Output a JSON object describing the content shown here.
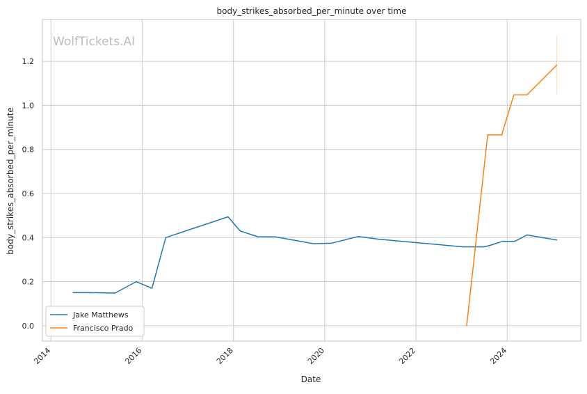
{
  "chart_data": {
    "type": "line",
    "title": "body_strikes_absorbed_per_minute over time",
    "xlabel": "Date",
    "ylabel": "body_strikes_absorbed_per_minute",
    "watermark": "WolfTickets.AI",
    "x_type": "date",
    "xlim": [
      "2013-10-25",
      "2025-08-12"
    ],
    "ylim": [
      -0.07,
      1.39
    ],
    "x_ticks": [
      {
        "date": "2014-01-01",
        "label": "2014"
      },
      {
        "date": "2016-01-01",
        "label": "2016"
      },
      {
        "date": "2018-01-01",
        "label": "2018"
      },
      {
        "date": "2020-01-01",
        "label": "2020"
      },
      {
        "date": "2022-01-01",
        "label": "2022"
      },
      {
        "date": "2024-01-01",
        "label": "2024"
      }
    ],
    "y_ticks": [
      {
        "value": 0.0,
        "label": "0.0"
      },
      {
        "value": 0.2,
        "label": "0.2"
      },
      {
        "value": 0.4,
        "label": "0.4"
      },
      {
        "value": 0.6,
        "label": "0.6"
      },
      {
        "value": 0.8,
        "label": "0.8"
      },
      {
        "value": 1.0,
        "label": "1.0"
      },
      {
        "value": 1.2,
        "label": "1.2"
      }
    ],
    "grid": true,
    "legend_position": "lower-left",
    "series": [
      {
        "name": "Jake Matthews",
        "color": "#1f77b4",
        "points": [
          {
            "x": "2014-06-28",
            "y": 0.15
          },
          {
            "x": "2014-11-08",
            "y": 0.15
          },
          {
            "x": "2015-05-30",
            "y": 0.148
          },
          {
            "x": "2015-11-14",
            "y": 0.2
          },
          {
            "x": "2016-03-20",
            "y": 0.17
          },
          {
            "x": "2016-07-08",
            "y": 0.4
          },
          {
            "x": "2017-11-19",
            "y": 0.494
          },
          {
            "x": "2018-02-24",
            "y": 0.43
          },
          {
            "x": "2018-07-14",
            "y": 0.404
          },
          {
            "x": "2018-12-02",
            "y": 0.403
          },
          {
            "x": "2019-10-06",
            "y": 0.372
          },
          {
            "x": "2020-02-29",
            "y": 0.375
          },
          {
            "x": "2020-09-27",
            "y": 0.405
          },
          {
            "x": "2021-03-13",
            "y": 0.392
          },
          {
            "x": "2023-01-14",
            "y": 0.358
          },
          {
            "x": "2023-07-01",
            "y": 0.358
          },
          {
            "x": "2023-08-26",
            "y": 0.366
          },
          {
            "x": "2023-11-25",
            "y": 0.383
          },
          {
            "x": "2024-03-02",
            "y": 0.383
          },
          {
            "x": "2024-06-08",
            "y": 0.412
          },
          {
            "x": "2025-02-01",
            "y": 0.389
          }
        ]
      },
      {
        "name": "Francisco Prado",
        "color": "#ff7f0e",
        "points": [
          {
            "x": "2023-02-11",
            "y": 0.0
          },
          {
            "x": "2023-07-29",
            "y": 0.866
          },
          {
            "x": "2023-11-18",
            "y": 0.866
          },
          {
            "x": "2024-02-24",
            "y": 1.048
          },
          {
            "x": "2024-06-08",
            "y": 1.048
          },
          {
            "x": "2025-02-01",
            "y": 1.183
          }
        ],
        "error_bar": {
          "x": "2025-02-01",
          "low": 1.05,
          "high": 1.32
        }
      }
    ]
  }
}
